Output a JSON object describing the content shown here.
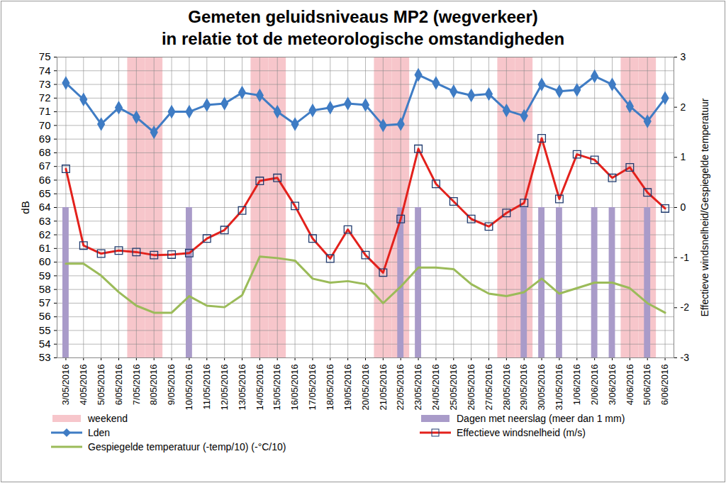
{
  "chart_data": {
    "type": "line",
    "title": "Gemeten geluidsniveaus MP2 (wegverkeer)",
    "subtitle": "in relatie tot de meteorologische omstandigheden",
    "x": [
      "3/05/2016",
      "4/05/2016",
      "5/05/2016",
      "6/05/2016",
      "7/05/2016",
      "8/05/2016",
      "9/05/2016",
      "10/05/2016",
      "11/05/2016",
      "12/05/2016",
      "13/05/2016",
      "14/05/2016",
      "15/05/2016",
      "16/05/2016",
      "17/05/2016",
      "18/05/2016",
      "19/05/2016",
      "20/05/2016",
      "21/05/2016",
      "22/05/2016",
      "23/05/2016",
      "24/05/2016",
      "25/05/2016",
      "26/05/2016",
      "27/05/2016",
      "28/05/2016",
      "29/05/2016",
      "30/05/2016",
      "31/05/2016",
      "1/06/2016",
      "2/06/2016",
      "3/06/2016",
      "4/06/2016",
      "5/06/2016",
      "6/06/2016"
    ],
    "y_label": "dB",
    "y2_label": "Effectieve windsnelheid/Gespiegelde temperatuur",
    "ylim": [
      53,
      75
    ],
    "yticks": [
      53,
      54,
      55,
      56,
      57,
      58,
      59,
      60,
      61,
      62,
      63,
      64,
      65,
      66,
      67,
      68,
      69,
      70,
      71,
      72,
      73,
      74,
      75
    ],
    "y2lim": [
      -3,
      3
    ],
    "y2ticks": [
      -3,
      -2,
      -1,
      0,
      1,
      2,
      3
    ],
    "grid": true,
    "legend": "bottom",
    "series": [
      {
        "name": "weekend",
        "type": "bar",
        "color": "#f7c6cb",
        "values": [
          null,
          null,
          null,
          null,
          75,
          75,
          null,
          null,
          null,
          null,
          null,
          75,
          75,
          null,
          null,
          null,
          null,
          null,
          75,
          75,
          null,
          null,
          null,
          null,
          null,
          75,
          75,
          null,
          null,
          null,
          null,
          null,
          75,
          75,
          null
        ]
      },
      {
        "name": "Dagen met neerslag (meer dan 1 mm)",
        "type": "bar",
        "color": "#a99bc9",
        "values": [
          64,
          null,
          null,
          null,
          null,
          null,
          null,
          64,
          null,
          null,
          null,
          null,
          null,
          null,
          null,
          null,
          null,
          null,
          null,
          64,
          64,
          null,
          null,
          null,
          null,
          null,
          64,
          64,
          64,
          null,
          64,
          64,
          null,
          64,
          null
        ]
      },
      {
        "name": "Lden",
        "type": "line",
        "color": "#3f7cc4",
        "marker": "diamond",
        "values": [
          73.1,
          71.9,
          70.1,
          71.3,
          70.6,
          69.5,
          71.0,
          71.0,
          71.5,
          71.6,
          72.4,
          72.2,
          71.0,
          70.1,
          71.1,
          71.3,
          71.6,
          71.5,
          70.0,
          70.1,
          73.7,
          73.1,
          72.5,
          72.2,
          72.3,
          71.1,
          70.7,
          73.0,
          72.5,
          72.6,
          73.6,
          73.0,
          71.4,
          70.3,
          72.0
        ]
      },
      {
        "name": "Effectieve windsnelheid (m/s)",
        "type": "line",
        "color": "#e3211c",
        "marker": "square",
        "axis": "y2",
        "values": [
          0.77,
          -0.76,
          -0.92,
          -0.86,
          -0.89,
          -0.95,
          -0.94,
          -0.91,
          -0.62,
          -0.45,
          -0.06,
          0.53,
          0.59,
          0.03,
          -0.62,
          -1.02,
          -0.44,
          -0.95,
          -1.3,
          -0.23,
          1.17,
          0.47,
          0.12,
          -0.23,
          -0.38,
          -0.11,
          0.09,
          1.38,
          0.17,
          1.06,
          0.95,
          0.59,
          0.8,
          0.3,
          -0.02
        ]
      },
      {
        "name": "Gespiegelde temperatuur (-temp/10) (-°C/10)",
        "type": "line",
        "color": "#9bbb59",
        "axis": "y2",
        "values": [
          -1.12,
          -1.12,
          -1.36,
          -1.69,
          -1.96,
          -2.1,
          -2.1,
          -1.77,
          -1.96,
          -1.99,
          -1.75,
          -0.98,
          -1.01,
          -1.06,
          -1.42,
          -1.5,
          -1.47,
          -1.53,
          -1.91,
          -1.58,
          -1.2,
          -1.2,
          -1.23,
          -1.53,
          -1.72,
          -1.77,
          -1.69,
          -1.42,
          -1.72,
          -1.61,
          -1.5,
          -1.5,
          -1.61,
          -1.91,
          -2.1
        ]
      }
    ]
  }
}
